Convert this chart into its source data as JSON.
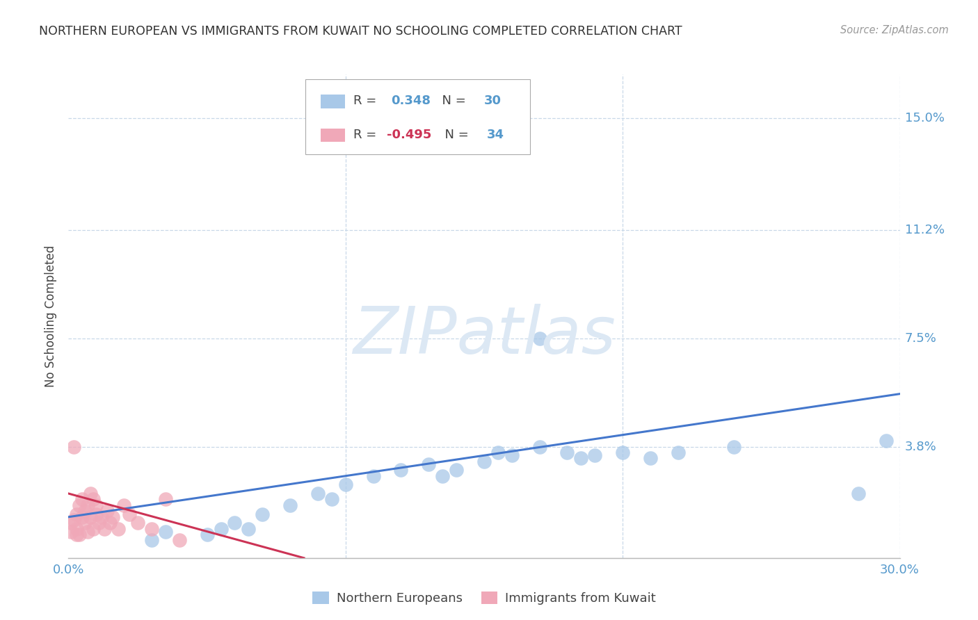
{
  "title": "NORTHERN EUROPEAN VS IMMIGRANTS FROM KUWAIT NO SCHOOLING COMPLETED CORRELATION CHART",
  "source": "Source: ZipAtlas.com",
  "ylabel": "No Schooling Completed",
  "xlim": [
    0.0,
    0.3
  ],
  "ylim": [
    0.0,
    0.165
  ],
  "yticks": [
    0.0,
    0.038,
    0.075,
    0.112,
    0.15
  ],
  "ytick_labels": [
    "",
    "3.8%",
    "7.5%",
    "11.2%",
    "15.0%"
  ],
  "xticks": [
    0.0,
    0.1,
    0.2,
    0.3
  ],
  "xtick_labels": [
    "0.0%",
    "",
    "",
    "30.0%"
  ],
  "background_color": "#ffffff",
  "grid_color": "#c8d8e8",
  "blue_color": "#a8c8e8",
  "pink_color": "#f0a8b8",
  "blue_line_color": "#4477cc",
  "pink_line_color": "#cc3355",
  "watermark_text": "ZIPatlas",
  "watermark_color": "#dce8f4",
  "legend_R_blue": "0.348",
  "legend_N_blue": "30",
  "legend_R_pink": "-0.495",
  "legend_N_pink": "34",
  "blue_scatter_x": [
    0.03,
    0.035,
    0.05,
    0.055,
    0.06,
    0.065,
    0.07,
    0.08,
    0.09,
    0.095,
    0.1,
    0.11,
    0.12,
    0.13,
    0.135,
    0.14,
    0.15,
    0.155,
    0.16,
    0.17,
    0.18,
    0.185,
    0.19,
    0.2,
    0.21,
    0.22,
    0.24,
    0.285,
    0.295,
    0.17
  ],
  "blue_scatter_y": [
    0.006,
    0.009,
    0.008,
    0.01,
    0.012,
    0.01,
    0.015,
    0.018,
    0.022,
    0.02,
    0.025,
    0.028,
    0.03,
    0.032,
    0.028,
    0.03,
    0.033,
    0.036,
    0.035,
    0.038,
    0.036,
    0.034,
    0.035,
    0.036,
    0.034,
    0.036,
    0.038,
    0.022,
    0.04,
    0.075
  ],
  "pink_scatter_x": [
    0.001,
    0.002,
    0.003,
    0.003,
    0.004,
    0.004,
    0.005,
    0.005,
    0.006,
    0.006,
    0.007,
    0.007,
    0.008,
    0.008,
    0.009,
    0.009,
    0.01,
    0.01,
    0.011,
    0.012,
    0.013,
    0.014,
    0.015,
    0.016,
    0.018,
    0.02,
    0.022,
    0.025,
    0.03,
    0.035,
    0.04,
    0.002,
    0.003,
    0.001
  ],
  "pink_scatter_y": [
    0.012,
    0.013,
    0.015,
    0.01,
    0.018,
    0.008,
    0.014,
    0.02,
    0.012,
    0.016,
    0.009,
    0.018,
    0.014,
    0.022,
    0.01,
    0.02,
    0.015,
    0.018,
    0.012,
    0.014,
    0.01,
    0.016,
    0.012,
    0.014,
    0.01,
    0.018,
    0.015,
    0.012,
    0.01,
    0.02,
    0.006,
    0.038,
    0.008,
    0.009
  ],
  "blue_line_x0": 0.0,
  "blue_line_y0": 0.014,
  "blue_line_x1": 0.3,
  "blue_line_y1": 0.056,
  "pink_line_x0": 0.0,
  "pink_line_y0": 0.022,
  "pink_line_x1": 0.085,
  "pink_line_y1": 0.0
}
